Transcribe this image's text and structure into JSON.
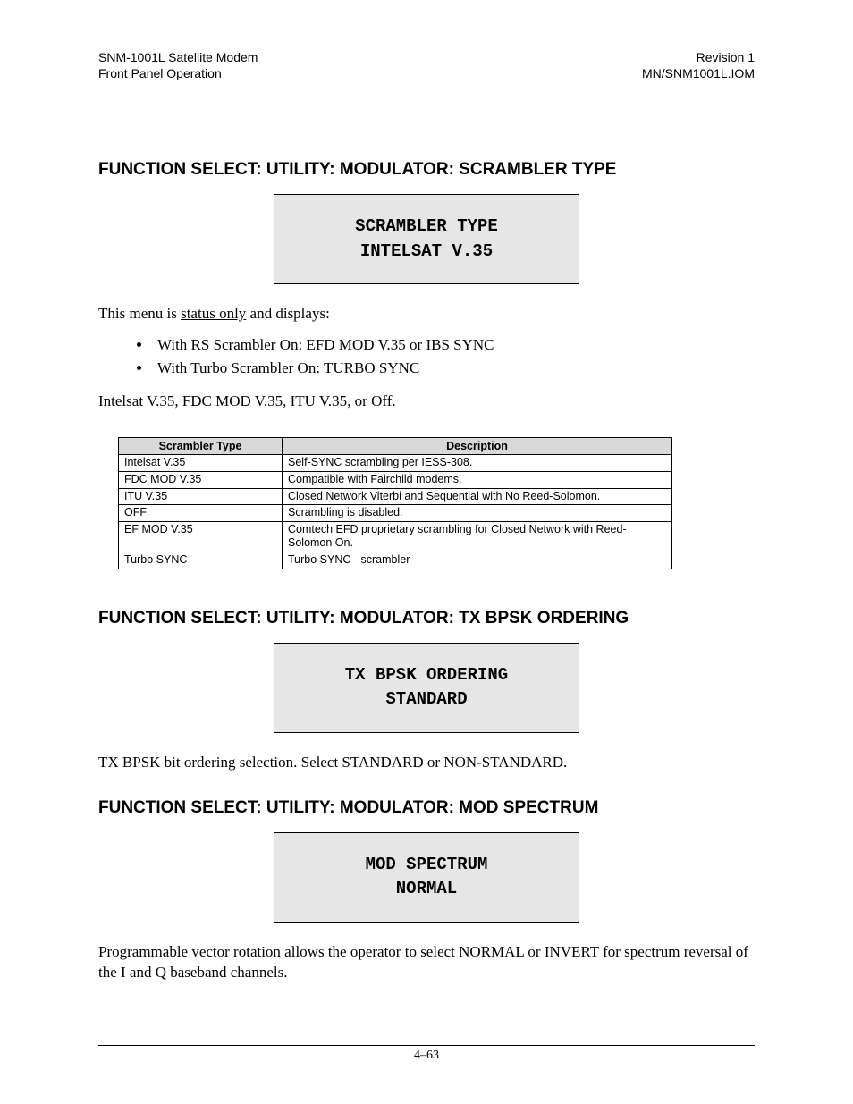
{
  "header": {
    "left_line1": "SNM-1001L Satellite Modem",
    "left_line2": "Front Panel Operation",
    "right_line1": "Revision 1",
    "right_line2": "MN/SNM1001L.IOM"
  },
  "section1": {
    "heading": "FUNCTION SELECT: UTILITY: MODULATOR: SCRAMBLER TYPE",
    "lcd_line1": "SCRAMBLER TYPE",
    "lcd_line2": "INTELSAT V.35",
    "intro_prefix": "This menu is ",
    "intro_underlined": "status only",
    "intro_suffix": " and displays:",
    "bullet1": "With RS Scrambler On: EFD MOD V.35 or IBS SYNC",
    "bullet2": "With Turbo Scrambler On: TURBO SYNC",
    "note": "Intelsat V.35, FDC MOD V.35, ITU V.35, or Off.",
    "table": {
      "col1_header": "Scrambler Type",
      "col2_header": "Description",
      "rows": [
        {
          "type": "Intelsat V.35",
          "desc": "Self-SYNC scrambling per IESS-308."
        },
        {
          "type": "FDC MOD V.35",
          "desc": "Compatible with Fairchild modems."
        },
        {
          "type": "ITU V.35",
          "desc": "Closed Network Viterbi and Sequential with No Reed-Solomon."
        },
        {
          "type": "OFF",
          "desc": "Scrambling is disabled."
        },
        {
          "type": "EF MOD V.35",
          "desc": "Comtech EFD proprietary scrambling for Closed Network with Reed-Solomon On."
        },
        {
          "type": "Turbo SYNC",
          "desc": "Turbo SYNC - scrambler"
        }
      ]
    }
  },
  "section2": {
    "heading": "FUNCTION SELECT: UTILITY: MODULATOR: TX BPSK ORDERING",
    "lcd_line1": "TX BPSK ORDERING",
    "lcd_line2": "STANDARD",
    "body": "TX BPSK bit ordering selection. Select STANDARD or NON-STANDARD."
  },
  "section3": {
    "heading": "FUNCTION SELECT: UTILITY: MODULATOR: MOD SPECTRUM",
    "lcd_line1": "MOD SPECTRUM",
    "lcd_line2": "NORMAL",
    "body": "Programmable vector rotation allows the operator to select NORMAL or INVERT for spectrum reversal of the I and Q baseband channels."
  },
  "footer": {
    "page_number": "4–63"
  },
  "styles": {
    "page_background": "#ffffff",
    "lcd_background": "#e6e6e6",
    "table_header_background": "#d9d9d9",
    "border_color": "#000000",
    "text_color": "#000000",
    "body_font": "Times New Roman",
    "heading_font": "Arial",
    "lcd_font": "Courier New",
    "table_font": "Arial"
  }
}
